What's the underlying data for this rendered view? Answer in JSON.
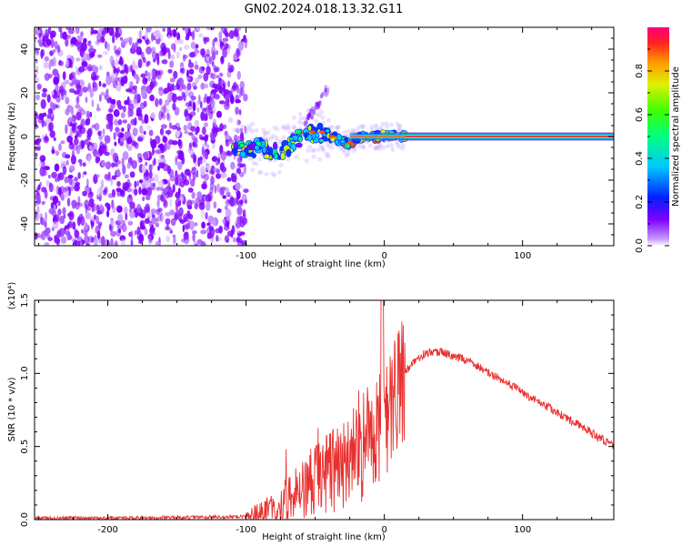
{
  "title": "GN02.2024.018.13.32.G11",
  "colors": {
    "snr_line": "#e8312f",
    "colormap": [
      "#ffffff",
      "#d9b8ff",
      "#7f00ff",
      "#0033ff",
      "#00c8ff",
      "#00ff66",
      "#c8ff00",
      "#ffd000",
      "#ff5000",
      "#ff0060"
    ]
  },
  "chart_data": [
    {
      "type": "heatmap",
      "xlabel": "Height of straight line (km)",
      "ylabel": "Frequency (Hz)",
      "xlim": [
        -253,
        166
      ],
      "ylim": [
        -50,
        50
      ],
      "x_ticks": [
        -200,
        -100,
        0,
        100
      ],
      "x_tick_labels": [
        "-200",
        "-100",
        "0",
        "100"
      ],
      "y_ticks": [
        -40,
        -20,
        0,
        20,
        40
      ],
      "y_tick_labels": [
        "-40",
        "-20",
        "0",
        "20",
        "40"
      ],
      "colorbar": {
        "label": "Normalized spectral amplitude",
        "range": [
          0,
          1
        ],
        "ticks": [
          0,
          0.2,
          0.4,
          0.6,
          0.8
        ],
        "tick_labels": [
          "0.0",
          "0.2",
          "0.4",
          "0.6",
          "0.8"
        ],
        "colormap": "rainbow"
      },
      "features": [
        {
          "name": "noise",
          "x_range": [
            -253,
            -100
          ],
          "freq_range": [
            -50,
            50
          ],
          "amplitude": 0.05
        },
        {
          "name": "carrier",
          "x_range": [
            15,
            166
          ],
          "freq": 0,
          "amplitude": 1.0
        },
        {
          "name": "transition",
          "x_range": [
            -110,
            15
          ],
          "freq_range": [
            -15,
            20
          ],
          "amplitude": 0.4
        }
      ],
      "track": [
        {
          "x": -110,
          "f": -5
        },
        {
          "x": -100,
          "f": -6
        },
        {
          "x": -90,
          "f": -5
        },
        {
          "x": -80,
          "f": -8
        },
        {
          "x": -70,
          "f": -5
        },
        {
          "x": -60,
          "f": 0
        },
        {
          "x": -50,
          "f": 2
        },
        {
          "x": -40,
          "f": 0
        },
        {
          "x": -30,
          "f": -2
        },
        {
          "x": -25,
          "f": -4
        },
        {
          "x": -20,
          "f": -1
        },
        {
          "x": -10,
          "f": 0
        },
        {
          "x": 0,
          "f": 0
        },
        {
          "x": 15,
          "f": 0
        },
        {
          "x": 166,
          "f": 0
        }
      ]
    },
    {
      "type": "line",
      "xlabel": "Height of straight line (km)",
      "ylabel": "SNR (10 * v/v)",
      "y_exponent_label": "(x10⁴)",
      "xlim": [
        -253,
        166
      ],
      "ylim": [
        0,
        1.5
      ],
      "x_ticks": [
        -200,
        -100,
        0,
        100
      ],
      "x_tick_labels": [
        "-200",
        "-100",
        "0",
        "100"
      ],
      "y_ticks": [
        0,
        0.5,
        1.0,
        1.5
      ],
      "y_tick_labels": [
        "0.0",
        "0.5",
        "1.0",
        "1.5"
      ],
      "series": [
        {
          "x": [
            -253,
            -200,
            -150,
            -100,
            -90,
            -80,
            -70,
            -60,
            -50,
            -40,
            -30,
            -20,
            -10,
            0,
            10,
            20,
            30,
            40,
            60,
            80,
            100,
            120,
            140,
            166
          ],
          "y": [
            0.01,
            0.01,
            0.015,
            0.02,
            0.03,
            0.06,
            0.12,
            0.2,
            0.28,
            0.32,
            0.38,
            0.45,
            0.55,
            0.7,
            0.95,
            1.07,
            1.14,
            1.15,
            1.09,
            0.98,
            0.87,
            0.76,
            0.65,
            0.5
          ]
        }
      ]
    }
  ]
}
